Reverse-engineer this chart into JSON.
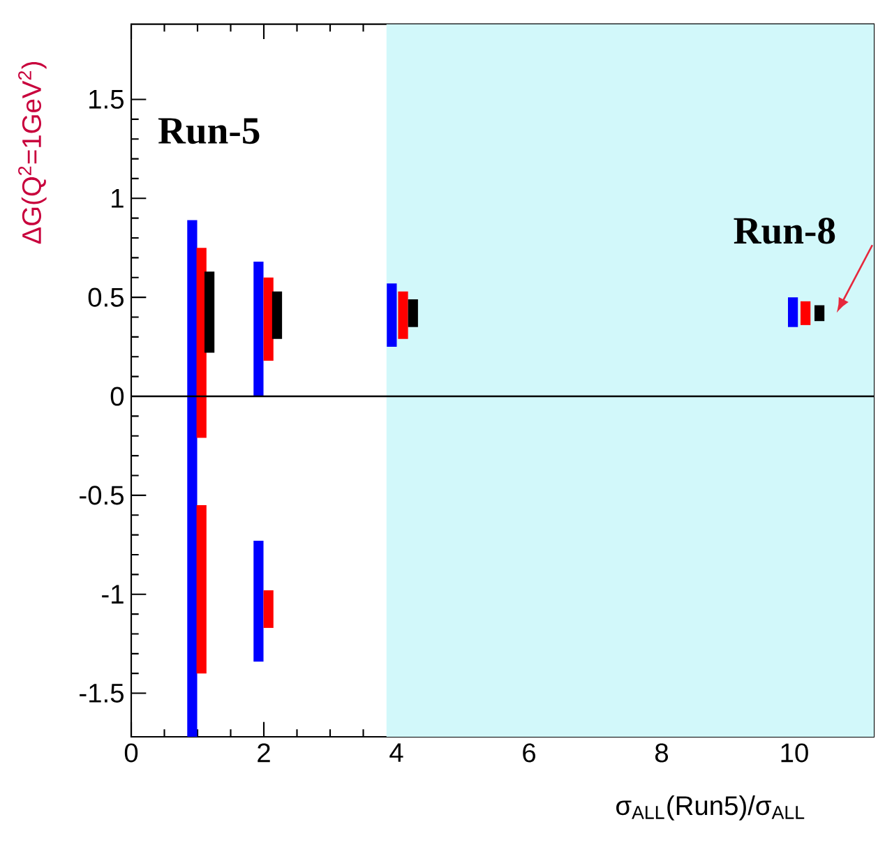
{
  "chart_data": {
    "type": "bar",
    "xlabel": "σ$_{ALL}$(Run5)/σ$_{ALL}$",
    "ylabel": "ΔG(Q$^{2}$=1GeV$^{2}$)",
    "xlim": [
      0,
      11.2
    ],
    "ylim": [
      -1.72,
      1.88
    ],
    "xticks": [
      0,
      2,
      4,
      6,
      8,
      10
    ],
    "yticks": [
      -1.5,
      -1,
      -0.5,
      0,
      0.5,
      1,
      1.5
    ],
    "series": [
      {
        "color": "#0000ff",
        "x": [
          0.92,
          1.92,
          3.93,
          9.98
        ],
        "base": [
          -1.72,
          0,
          0.25,
          0.35
        ],
        "values": [
          2.61,
          0.68,
          0.32,
          0.15
        ]
      },
      {
        "color": "#ff0000",
        "x": [
          1.06,
          2.07,
          4.1,
          10.17
        ],
        "base": [
          -0.21,
          0.18,
          0.29,
          0.36
        ],
        "values": [
          0.96,
          0.42,
          0.24,
          0.12
        ]
      },
      {
        "color": "#000000",
        "x": [
          1.18,
          2.2,
          4.25,
          10.38
        ],
        "base": [
          0.22,
          0.29,
          0.35,
          0.38
        ],
        "values": [
          0.41,
          0.24,
          0.14,
          0.08
        ]
      },
      {
        "color": "#0000ff",
        "x": [
          1.92
        ],
        "base": [
          -1.34
        ],
        "values": [
          0.61
        ]
      },
      {
        "color": "#ff0000",
        "x": [
          1.06,
          2.07
        ],
        "base": [
          -1.4,
          -1.17
        ],
        "values": [
          0.85,
          0.19
        ]
      }
    ],
    "ref_lines": [
      {
        "axis": "y",
        "value": 0,
        "color": "#000000"
      }
    ],
    "bands": [
      {
        "axis": "x",
        "from": 3.85,
        "to": 11.2,
        "color": "#d2f8fa"
      }
    ],
    "annotations": [
      "Run-5",
      "Run-8"
    ]
  }
}
